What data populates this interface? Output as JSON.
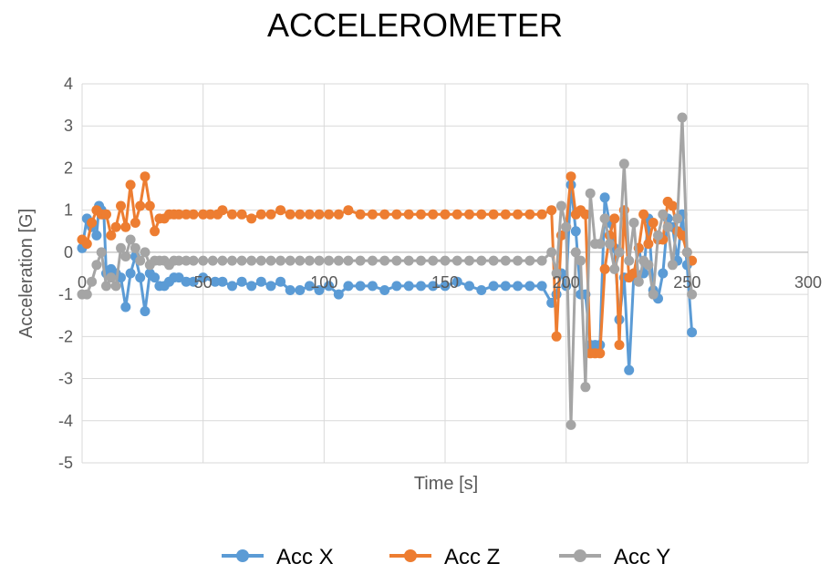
{
  "chart_data": {
    "type": "line",
    "title": "ACCELEROMETER",
    "xlabel": "Time [s]",
    "ylabel": "Acceleration [G]",
    "xlim": [
      0,
      300
    ],
    "ylim": [
      -5,
      4
    ],
    "x_ticks": [
      "0",
      "50",
      "100",
      "150",
      "200",
      "250",
      "300"
    ],
    "y_ticks": [
      "-5",
      "-4",
      "-3",
      "-2",
      "-1",
      "0",
      "1",
      "2",
      "3",
      "4"
    ],
    "grid": true,
    "legend_position": "bottom",
    "series": [
      {
        "name": "Acc X",
        "color": "#5B9BD5",
        "points": [
          [
            0,
            0.1
          ],
          [
            2,
            0.8
          ],
          [
            4,
            0.6
          ],
          [
            6,
            0.4
          ],
          [
            7,
            1.1
          ],
          [
            8,
            1.0
          ],
          [
            9,
            0.9
          ],
          [
            10,
            -0.5
          ],
          [
            12,
            -0.4
          ],
          [
            14,
            -0.5
          ],
          [
            16,
            -0.6
          ],
          [
            18,
            -1.3
          ],
          [
            20,
            -0.5
          ],
          [
            22,
            -0.1
          ],
          [
            24,
            -0.6
          ],
          [
            26,
            -1.4
          ],
          [
            28,
            -0.5
          ],
          [
            30,
            -0.6
          ],
          [
            32,
            -0.8
          ],
          [
            34,
            -0.8
          ],
          [
            36,
            -0.7
          ],
          [
            38,
            -0.6
          ],
          [
            40,
            -0.6
          ],
          [
            43,
            -0.7
          ],
          [
            46,
            -0.7
          ],
          [
            50,
            -0.6
          ],
          [
            55,
            -0.7
          ],
          [
            58,
            -0.7
          ],
          [
            62,
            -0.8
          ],
          [
            66,
            -0.7
          ],
          [
            70,
            -0.8
          ],
          [
            74,
            -0.7
          ],
          [
            78,
            -0.8
          ],
          [
            82,
            -0.7
          ],
          [
            86,
            -0.9
          ],
          [
            90,
            -0.9
          ],
          [
            94,
            -0.8
          ],
          [
            98,
            -0.9
          ],
          [
            102,
            -0.8
          ],
          [
            106,
            -1.0
          ],
          [
            110,
            -0.8
          ],
          [
            115,
            -0.8
          ],
          [
            120,
            -0.8
          ],
          [
            125,
            -0.9
          ],
          [
            130,
            -0.8
          ],
          [
            135,
            -0.8
          ],
          [
            140,
            -0.8
          ],
          [
            145,
            -0.8
          ],
          [
            150,
            -0.8
          ],
          [
            155,
            -0.7
          ],
          [
            160,
            -0.8
          ],
          [
            165,
            -0.9
          ],
          [
            170,
            -0.8
          ],
          [
            175,
            -0.8
          ],
          [
            180,
            -0.8
          ],
          [
            185,
            -0.8
          ],
          [
            190,
            -0.8
          ],
          [
            194,
            -1.2
          ],
          [
            196,
            -1.0
          ],
          [
            198,
            -0.5
          ],
          [
            200,
            -0.8
          ],
          [
            202,
            1.6
          ],
          [
            204,
            0.5
          ],
          [
            206,
            -1.0
          ],
          [
            208,
            -1.0
          ],
          [
            210,
            -2.2
          ],
          [
            212,
            -2.2
          ],
          [
            214,
            -2.2
          ],
          [
            216,
            1.3
          ],
          [
            218,
            0.7
          ],
          [
            220,
            0.1
          ],
          [
            222,
            -1.6
          ],
          [
            224,
            -0.6
          ],
          [
            226,
            -2.8
          ],
          [
            228,
            -0.5
          ],
          [
            230,
            0.1
          ],
          [
            232,
            -0.5
          ],
          [
            234,
            0.8
          ],
          [
            236,
            -0.9
          ],
          [
            238,
            -1.1
          ],
          [
            240,
            -0.5
          ],
          [
            242,
            0.8
          ],
          [
            244,
            0.6
          ],
          [
            246,
            -0.2
          ],
          [
            248,
            0.9
          ],
          [
            250,
            -0.3
          ],
          [
            252,
            -1.9
          ]
        ]
      },
      {
        "name": "Acc Z",
        "color": "#ED7D31",
        "points": [
          [
            0,
            0.3
          ],
          [
            2,
            0.2
          ],
          [
            4,
            0.7
          ],
          [
            6,
            1.0
          ],
          [
            8,
            0.9
          ],
          [
            10,
            0.9
          ],
          [
            12,
            0.4
          ],
          [
            14,
            0.6
          ],
          [
            16,
            1.1
          ],
          [
            18,
            0.6
          ],
          [
            20,
            1.6
          ],
          [
            22,
            0.7
          ],
          [
            24,
            1.1
          ],
          [
            26,
            1.8
          ],
          [
            28,
            1.1
          ],
          [
            30,
            0.5
          ],
          [
            32,
            0.8
          ],
          [
            34,
            0.8
          ],
          [
            36,
            0.9
          ],
          [
            38,
            0.9
          ],
          [
            40,
            0.9
          ],
          [
            43,
            0.9
          ],
          [
            46,
            0.9
          ],
          [
            50,
            0.9
          ],
          [
            53,
            0.9
          ],
          [
            56,
            0.9
          ],
          [
            58,
            1.0
          ],
          [
            62,
            0.9
          ],
          [
            66,
            0.9
          ],
          [
            70,
            0.8
          ],
          [
            74,
            0.9
          ],
          [
            78,
            0.9
          ],
          [
            82,
            1.0
          ],
          [
            86,
            0.9
          ],
          [
            90,
            0.9
          ],
          [
            94,
            0.9
          ],
          [
            98,
            0.9
          ],
          [
            102,
            0.9
          ],
          [
            106,
            0.9
          ],
          [
            110,
            1.0
          ],
          [
            115,
            0.9
          ],
          [
            120,
            0.9
          ],
          [
            125,
            0.9
          ],
          [
            130,
            0.9
          ],
          [
            135,
            0.9
          ],
          [
            140,
            0.9
          ],
          [
            145,
            0.9
          ],
          [
            150,
            0.9
          ],
          [
            155,
            0.9
          ],
          [
            160,
            0.9
          ],
          [
            165,
            0.9
          ],
          [
            170,
            0.9
          ],
          [
            175,
            0.9
          ],
          [
            180,
            0.9
          ],
          [
            185,
            0.9
          ],
          [
            190,
            0.9
          ],
          [
            194,
            1.0
          ],
          [
            196,
            -2.0
          ],
          [
            198,
            0.4
          ],
          [
            200,
            0.6
          ],
          [
            202,
            1.8
          ],
          [
            204,
            0.9
          ],
          [
            206,
            1.0
          ],
          [
            208,
            0.9
          ],
          [
            210,
            -2.4
          ],
          [
            212,
            -2.4
          ],
          [
            214,
            -2.4
          ],
          [
            216,
            -0.4
          ],
          [
            218,
            0.4
          ],
          [
            220,
            0.8
          ],
          [
            222,
            -2.2
          ],
          [
            224,
            1.0
          ],
          [
            226,
            -0.6
          ],
          [
            228,
            -0.5
          ],
          [
            230,
            0.1
          ],
          [
            232,
            0.9
          ],
          [
            234,
            0.2
          ],
          [
            236,
            0.7
          ],
          [
            238,
            0.3
          ],
          [
            240,
            0.3
          ],
          [
            242,
            1.2
          ],
          [
            244,
            1.1
          ],
          [
            246,
            0.5
          ],
          [
            248,
            0.4
          ],
          [
            250,
            0.0
          ],
          [
            252,
            -0.2
          ]
        ]
      },
      {
        "name": "Acc Y",
        "color": "#A5A5A5",
        "points": [
          [
            0,
            -1.0
          ],
          [
            2,
            -1.0
          ],
          [
            4,
            -0.7
          ],
          [
            6,
            -0.3
          ],
          [
            8,
            0.0
          ],
          [
            10,
            -0.8
          ],
          [
            12,
            -0.6
          ],
          [
            14,
            -0.8
          ],
          [
            16,
            0.1
          ],
          [
            18,
            -0.1
          ],
          [
            20,
            0.3
          ],
          [
            22,
            0.1
          ],
          [
            24,
            -0.2
          ],
          [
            26,
            0.0
          ],
          [
            28,
            -0.3
          ],
          [
            30,
            -0.2
          ],
          [
            32,
            -0.2
          ],
          [
            34,
            -0.2
          ],
          [
            36,
            -0.3
          ],
          [
            38,
            -0.2
          ],
          [
            40,
            -0.2
          ],
          [
            43,
            -0.2
          ],
          [
            46,
            -0.2
          ],
          [
            50,
            -0.2
          ],
          [
            54,
            -0.2
          ],
          [
            58,
            -0.2
          ],
          [
            62,
            -0.2
          ],
          [
            66,
            -0.2
          ],
          [
            70,
            -0.2
          ],
          [
            74,
            -0.2
          ],
          [
            78,
            -0.2
          ],
          [
            82,
            -0.2
          ],
          [
            86,
            -0.2
          ],
          [
            90,
            -0.2
          ],
          [
            94,
            -0.2
          ],
          [
            98,
            -0.2
          ],
          [
            102,
            -0.2
          ],
          [
            106,
            -0.2
          ],
          [
            110,
            -0.2
          ],
          [
            115,
            -0.2
          ],
          [
            120,
            -0.2
          ],
          [
            125,
            -0.2
          ],
          [
            130,
            -0.2
          ],
          [
            135,
            -0.2
          ],
          [
            140,
            -0.2
          ],
          [
            145,
            -0.2
          ],
          [
            150,
            -0.2
          ],
          [
            155,
            -0.2
          ],
          [
            160,
            -0.2
          ],
          [
            165,
            -0.2
          ],
          [
            170,
            -0.2
          ],
          [
            175,
            -0.2
          ],
          [
            180,
            -0.2
          ],
          [
            185,
            -0.2
          ],
          [
            190,
            -0.2
          ],
          [
            194,
            0.0
          ],
          [
            196,
            -0.5
          ],
          [
            198,
            1.1
          ],
          [
            200,
            0.6
          ],
          [
            202,
            -4.1
          ],
          [
            204,
            0.0
          ],
          [
            206,
            -0.2
          ],
          [
            208,
            -3.2
          ],
          [
            210,
            1.4
          ],
          [
            212,
            0.2
          ],
          [
            214,
            0.2
          ],
          [
            216,
            0.8
          ],
          [
            218,
            0.2
          ],
          [
            220,
            -0.4
          ],
          [
            222,
            0.0
          ],
          [
            224,
            2.1
          ],
          [
            226,
            -0.2
          ],
          [
            228,
            0.7
          ],
          [
            230,
            -0.7
          ],
          [
            232,
            -0.2
          ],
          [
            234,
            -0.3
          ],
          [
            236,
            -1.0
          ],
          [
            238,
            0.4
          ],
          [
            240,
            0.9
          ],
          [
            242,
            0.6
          ],
          [
            244,
            -0.3
          ],
          [
            246,
            0.8
          ],
          [
            248,
            3.2
          ],
          [
            250,
            0.0
          ],
          [
            252,
            -1.0
          ]
        ]
      }
    ]
  }
}
